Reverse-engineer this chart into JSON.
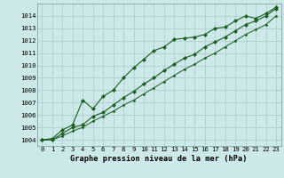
{
  "x": [
    0,
    1,
    2,
    3,
    4,
    5,
    6,
    7,
    8,
    9,
    10,
    11,
    12,
    13,
    14,
    15,
    16,
    17,
    18,
    19,
    20,
    21,
    22,
    23
  ],
  "line_top": [
    1004.0,
    1004.1,
    1004.8,
    1005.2,
    1007.2,
    1006.5,
    1007.5,
    1008.0,
    1009.0,
    1009.8,
    1010.5,
    1011.2,
    1011.5,
    1012.1,
    1012.2,
    1012.3,
    1012.5,
    1013.0,
    1013.1,
    1013.6,
    1014.0,
    1013.8,
    1014.2,
    1014.7
  ],
  "line_mid": [
    1004.0,
    1004.0,
    1004.5,
    1005.0,
    1005.2,
    1005.9,
    1006.2,
    1006.8,
    1007.4,
    1007.9,
    1008.5,
    1009.0,
    1009.6,
    1010.1,
    1010.6,
    1010.9,
    1011.5,
    1011.9,
    1012.3,
    1012.8,
    1013.3,
    1013.6,
    1014.0,
    1014.6
  ],
  "line_bot": [
    1004.0,
    1004.0,
    1004.3,
    1004.7,
    1005.0,
    1005.5,
    1005.9,
    1006.3,
    1006.8,
    1007.2,
    1007.7,
    1008.2,
    1008.7,
    1009.2,
    1009.7,
    1010.1,
    1010.6,
    1011.0,
    1011.5,
    1012.0,
    1012.5,
    1012.9,
    1013.3,
    1014.0
  ],
  "ylim": [
    1003.5,
    1015.0
  ],
  "yticks": [
    1004,
    1005,
    1006,
    1007,
    1008,
    1009,
    1010,
    1011,
    1012,
    1013,
    1014
  ],
  "xlim": [
    -0.5,
    23.5
  ],
  "xlabel": "Graphe pression niveau de la mer (hPa)",
  "bg_color": "#cce8e8",
  "grid_color": "#aacccc",
  "line_color": "#1a5e20",
  "tick_fontsize": 5.2,
  "xlabel_fontsize": 6.2
}
